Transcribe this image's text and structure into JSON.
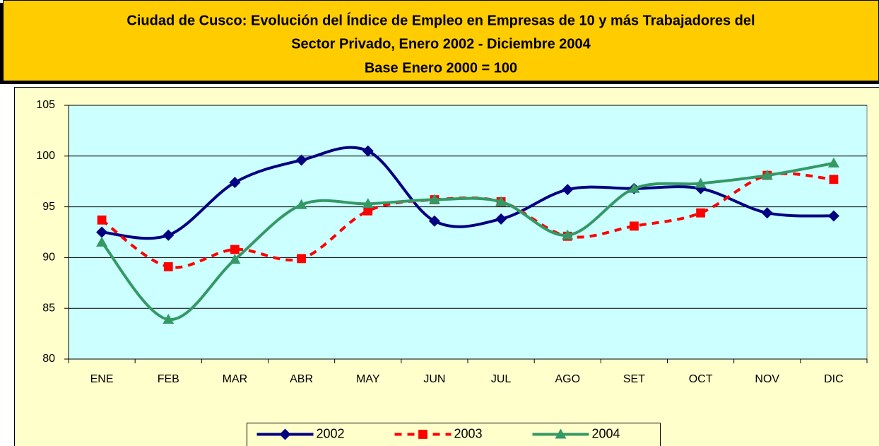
{
  "chart_data": {
    "type": "line",
    "title": [
      "Ciudad de Cusco: Evolución del Índice de Empleo en Empresas de 10 y más Trabajadores del",
      "Sector Privado, Enero 2002 - Diciembre 2004",
      "Base Enero 2000  =  100"
    ],
    "categories": [
      "ENE",
      "FEB",
      "MAR",
      "ABR",
      "MAY",
      "JUN",
      "JUL",
      "AGO",
      "SET",
      "OCT",
      "NOV",
      "DIC"
    ],
    "series": [
      {
        "name": "2002",
        "color": "#000080",
        "marker": "diamond",
        "dashed": false,
        "values": [
          92.5,
          92.2,
          97.4,
          99.6,
          100.5,
          93.6,
          93.8,
          96.7,
          96.8,
          96.8,
          94.4,
          94.1
        ]
      },
      {
        "name": "2003",
        "color": "#FF0000",
        "marker": "square",
        "dashed": true,
        "values": [
          93.7,
          89.1,
          90.8,
          89.9,
          94.6,
          95.7,
          95.5,
          92.1,
          93.1,
          94.4,
          98.1,
          97.7
        ]
      },
      {
        "name": "2004",
        "color": "#339966",
        "marker": "triangle",
        "dashed": false,
        "values": [
          91.5,
          83.9,
          89.8,
          95.2,
          95.3,
          95.7,
          95.5,
          92.2,
          96.8,
          97.3,
          98.1,
          99.3
        ]
      }
    ],
    "ylim": [
      80,
      105
    ],
    "yticks": [
      80,
      85,
      90,
      95,
      100,
      105
    ],
    "grid": true,
    "smooth": true,
    "legend": "bottom"
  }
}
